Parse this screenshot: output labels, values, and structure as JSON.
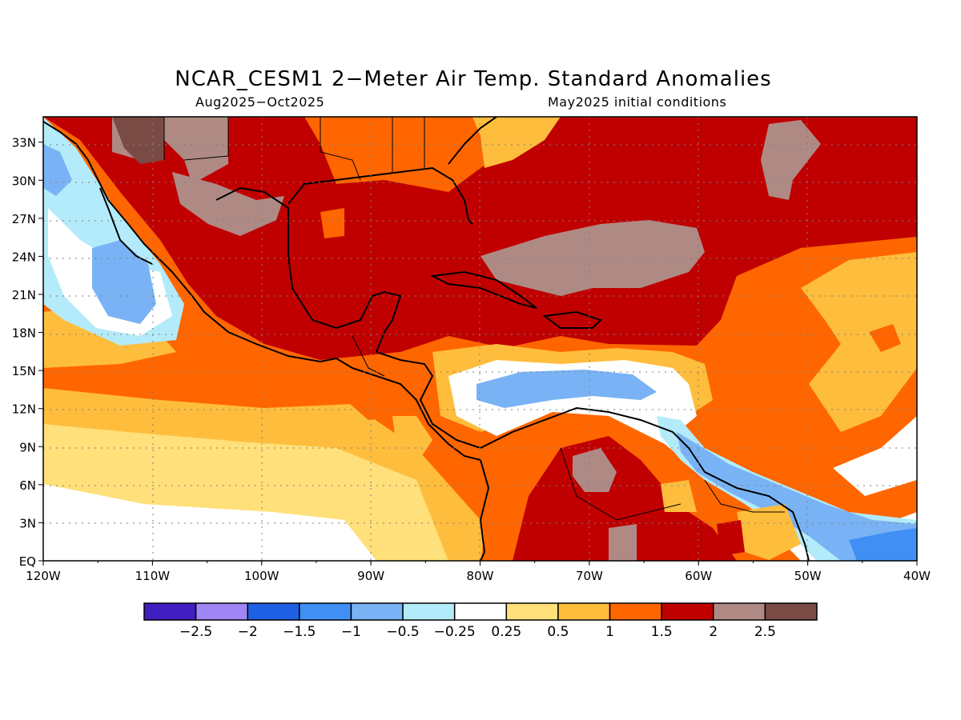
{
  "header": {
    "title": "NCAR_CESM1 2−Meter Air Temp. Standard Anomalies",
    "period": "Aug2025−Oct2025",
    "initial": "May2025 initial conditions"
  },
  "map": {
    "lon_ticks": [
      "120W",
      "110W",
      "100W",
      "90W",
      "80W",
      "70W",
      "60W",
      "50W",
      "40W"
    ],
    "lat_ticks": [
      "EQ",
      "3N",
      "6N",
      "9N",
      "12N",
      "15N",
      "18N",
      "21N",
      "24N",
      "27N",
      "30N",
      "33N"
    ]
  },
  "colorbar": {
    "colors": [
      "#3f1fbf",
      "#9f87f5",
      "#1f5fe3",
      "#3f8ff5",
      "#79b3f5",
      "#b3ebfa",
      "#ffffff",
      "#ffe07a",
      "#ffbd3d",
      "#ff6600",
      "#c00000",
      "#af8a84",
      "#7a4b45"
    ],
    "labels": [
      "−2.5",
      "−2",
      "−1.5",
      "−1",
      "−0.5",
      "−0.25",
      "0.25",
      "0.5",
      "1",
      "1.5",
      "2",
      "2.5"
    ]
  }
}
